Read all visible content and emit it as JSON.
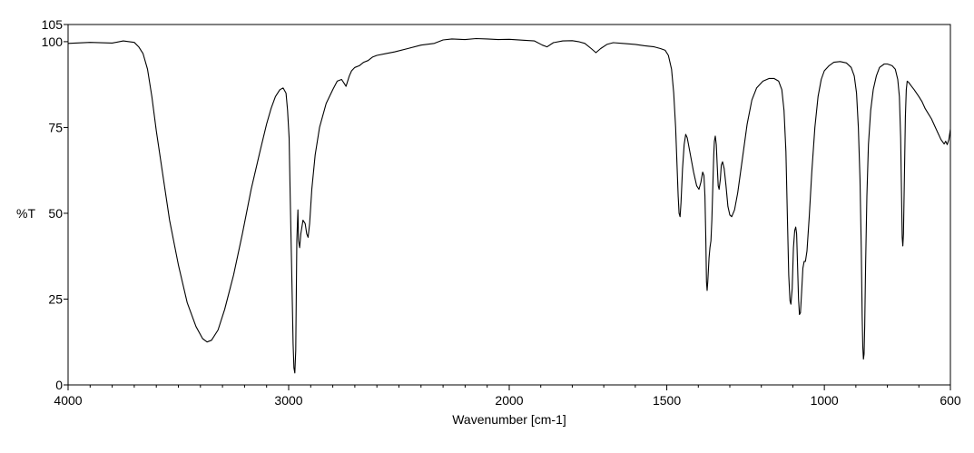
{
  "chart_data": {
    "type": "line",
    "title": "",
    "xlabel": "Wavenumber [cm-1]",
    "ylabel": "%T",
    "xlim": [
      4000,
      600
    ],
    "ylim": [
      0,
      105
    ],
    "x_scale": "piecewise-linear (axis spacing doubles below 2000 cm-1)",
    "x_ticks": [
      4000,
      3000,
      2000,
      1500,
      1000,
      600
    ],
    "x_tick_labels": [
      "4000",
      "3000",
      "2000",
      "1500",
      "1000",
      "600"
    ],
    "y_ticks": [
      0,
      25,
      50,
      75,
      100,
      105
    ],
    "y_tick_labels": [
      "0",
      "25",
      "50",
      "75",
      "100",
      "105"
    ],
    "grid": false,
    "legend": "none",
    "line_color": "#000000",
    "series": [
      {
        "values_xy": [
          [
            4000,
            99.5
          ],
          [
            3900,
            99.8
          ],
          [
            3800,
            99.6
          ],
          [
            3750,
            100.2
          ],
          [
            3700,
            99.8
          ],
          [
            3680,
            98.5
          ],
          [
            3660,
            96.5
          ],
          [
            3640,
            92
          ],
          [
            3620,
            84
          ],
          [
            3600,
            74
          ],
          [
            3570,
            61
          ],
          [
            3540,
            48
          ],
          [
            3500,
            35
          ],
          [
            3460,
            24
          ],
          [
            3420,
            17
          ],
          [
            3390,
            13.5
          ],
          [
            3370,
            12.5
          ],
          [
            3350,
            13
          ],
          [
            3320,
            16
          ],
          [
            3290,
            22
          ],
          [
            3250,
            32
          ],
          [
            3210,
            44
          ],
          [
            3170,
            57
          ],
          [
            3130,
            68
          ],
          [
            3100,
            76
          ],
          [
            3080,
            80.5
          ],
          [
            3060,
            84
          ],
          [
            3040,
            86
          ],
          [
            3025,
            86.5
          ],
          [
            3012,
            85
          ],
          [
            3005,
            80
          ],
          [
            2998,
            72
          ],
          [
            2993,
            55
          ],
          [
            2985,
            30
          ],
          [
            2980,
            12
          ],
          [
            2976,
            5
          ],
          [
            2972,
            3.5
          ],
          [
            2968,
            10
          ],
          [
            2963,
            42
          ],
          [
            2958,
            51
          ],
          [
            2955,
            42
          ],
          [
            2950,
            40
          ],
          [
            2945,
            44
          ],
          [
            2935,
            48
          ],
          [
            2925,
            47
          ],
          [
            2918,
            44
          ],
          [
            2912,
            43
          ],
          [
            2905,
            47
          ],
          [
            2895,
            57
          ],
          [
            2880,
            67
          ],
          [
            2860,
            75
          ],
          [
            2830,
            82
          ],
          [
            2800,
            86
          ],
          [
            2780,
            88.5
          ],
          [
            2760,
            89
          ],
          [
            2750,
            88
          ],
          [
            2740,
            87
          ],
          [
            2725,
            90
          ],
          [
            2715,
            91.5
          ],
          [
            2700,
            92.5
          ],
          [
            2680,
            93
          ],
          [
            2660,
            94
          ],
          [
            2640,
            94.5
          ],
          [
            2620,
            95.5
          ],
          [
            2600,
            96
          ],
          [
            2560,
            96.5
          ],
          [
            2520,
            97
          ],
          [
            2460,
            98
          ],
          [
            2400,
            99
          ],
          [
            2340,
            99.5
          ],
          [
            2300,
            100.5
          ],
          [
            2260,
            100.8
          ],
          [
            2200,
            100.6
          ],
          [
            2150,
            100.9
          ],
          [
            2100,
            100.8
          ],
          [
            2050,
            100.6
          ],
          [
            2000,
            100.7
          ],
          [
            1950,
            100.4
          ],
          [
            1920,
            100.2
          ],
          [
            1895,
            99
          ],
          [
            1880,
            98.5
          ],
          [
            1860,
            99.7
          ],
          [
            1830,
            100.2
          ],
          [
            1800,
            100.3
          ],
          [
            1780,
            100.0
          ],
          [
            1760,
            99.5
          ],
          [
            1740,
            98
          ],
          [
            1725,
            96.8
          ],
          [
            1710,
            98
          ],
          [
            1690,
            99.2
          ],
          [
            1670,
            99.7
          ],
          [
            1640,
            99.5
          ],
          [
            1600,
            99.2
          ],
          [
            1570,
            98.8
          ],
          [
            1540,
            98.5
          ],
          [
            1520,
            98.0
          ],
          [
            1505,
            97.5
          ],
          [
            1495,
            96
          ],
          [
            1485,
            92
          ],
          [
            1478,
            85
          ],
          [
            1472,
            75
          ],
          [
            1468,
            65
          ],
          [
            1464,
            55
          ],
          [
            1461,
            50
          ],
          [
            1458,
            49
          ],
          [
            1455,
            53
          ],
          [
            1450,
            63
          ],
          [
            1445,
            70
          ],
          [
            1440,
            73
          ],
          [
            1435,
            72
          ],
          [
            1425,
            67
          ],
          [
            1415,
            62
          ],
          [
            1405,
            58
          ],
          [
            1398,
            57
          ],
          [
            1392,
            59
          ],
          [
            1386,
            62
          ],
          [
            1382,
            61
          ],
          [
            1379,
            55
          ],
          [
            1376,
            42
          ],
          [
            1374,
            30
          ],
          [
            1372,
            27.5
          ],
          [
            1370,
            30
          ],
          [
            1366,
            37
          ],
          [
            1363,
            40
          ],
          [
            1360,
            42
          ],
          [
            1357,
            48
          ],
          [
            1354,
            58
          ],
          [
            1351,
            67
          ],
          [
            1349,
            71
          ],
          [
            1346,
            72.5
          ],
          [
            1343,
            70
          ],
          [
            1340,
            64
          ],
          [
            1337,
            58
          ],
          [
            1334,
            57
          ],
          [
            1330,
            60
          ],
          [
            1327,
            64
          ],
          [
            1323,
            65
          ],
          [
            1318,
            63
          ],
          [
            1312,
            58
          ],
          [
            1306,
            52
          ],
          [
            1300,
            49.5
          ],
          [
            1294,
            49
          ],
          [
            1285,
            51
          ],
          [
            1275,
            56
          ],
          [
            1260,
            66
          ],
          [
            1245,
            76
          ],
          [
            1230,
            83
          ],
          [
            1215,
            86.5
          ],
          [
            1195,
            88.5
          ],
          [
            1175,
            89.3
          ],
          [
            1160,
            89.3
          ],
          [
            1145,
            88.5
          ],
          [
            1135,
            86
          ],
          [
            1128,
            80
          ],
          [
            1122,
            68
          ],
          [
            1117,
            48
          ],
          [
            1113,
            32
          ],
          [
            1109,
            24.5
          ],
          [
            1106,
            23.5
          ],
          [
            1102,
            28
          ],
          [
            1098,
            40
          ],
          [
            1094,
            45
          ],
          [
            1091,
            46
          ],
          [
            1088,
            44
          ],
          [
            1085,
            35
          ],
          [
            1082,
            25
          ],
          [
            1079,
            20.5
          ],
          [
            1076,
            21
          ],
          [
            1072,
            27
          ],
          [
            1068,
            34
          ],
          [
            1064,
            36
          ],
          [
            1060,
            36
          ],
          [
            1055,
            39
          ],
          [
            1048,
            49
          ],
          [
            1040,
            62
          ],
          [
            1030,
            75
          ],
          [
            1020,
            84
          ],
          [
            1010,
            89
          ],
          [
            1000,
            91.5
          ],
          [
            985,
            93
          ],
          [
            970,
            94
          ],
          [
            950,
            94.2
          ],
          [
            930,
            93.8
          ],
          [
            915,
            92.5
          ],
          [
            905,
            90
          ],
          [
            898,
            85
          ],
          [
            892,
            75
          ],
          [
            887,
            60
          ],
          [
            883,
            40
          ],
          [
            880,
            20
          ],
          [
            878,
            11
          ],
          [
            876,
            7.5
          ],
          [
            874,
            9
          ],
          [
            872,
            17
          ],
          [
            869,
            35
          ],
          [
            865,
            55
          ],
          [
            860,
            70
          ],
          [
            853,
            80
          ],
          [
            845,
            86
          ],
          [
            835,
            90
          ],
          [
            825,
            92.5
          ],
          [
            810,
            93.5
          ],
          [
            800,
            93.5
          ],
          [
            785,
            93
          ],
          [
            775,
            92
          ],
          [
            767,
            89
          ],
          [
            762,
            84
          ],
          [
            758,
            72
          ],
          [
            755,
            55
          ],
          [
            753,
            43
          ],
          [
            751,
            40.5
          ],
          [
            749,
            44
          ],
          [
            746,
            60
          ],
          [
            743,
            78
          ],
          [
            740,
            86
          ],
          [
            737,
            88.5
          ],
          [
            733,
            88.2
          ],
          [
            725,
            87.2
          ],
          [
            715,
            86
          ],
          [
            700,
            84
          ],
          [
            690,
            82.5
          ],
          [
            680,
            80.5
          ],
          [
            670,
            79
          ],
          [
            660,
            77.5
          ],
          [
            650,
            75.5
          ],
          [
            640,
            73.5
          ],
          [
            630,
            71.5
          ],
          [
            620,
            70.2
          ],
          [
            615,
            71
          ],
          [
            610,
            70
          ],
          [
            605,
            71.5
          ],
          [
            600,
            74.5
          ]
        ]
      }
    ]
  }
}
